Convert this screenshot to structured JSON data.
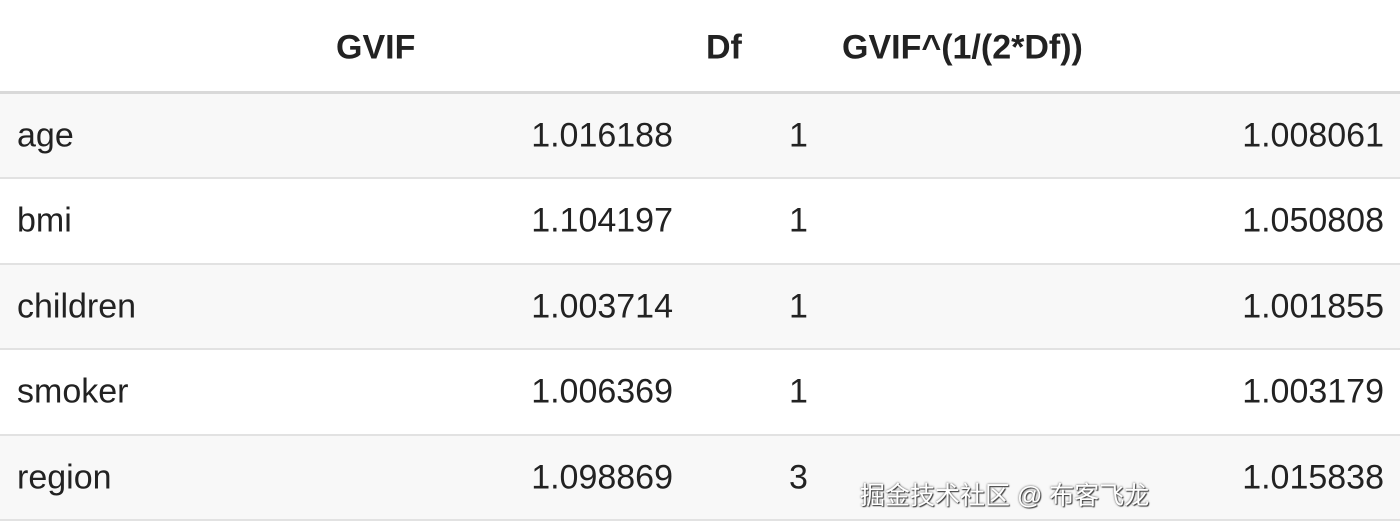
{
  "table": {
    "headers": [
      "",
      "GVIF",
      "Df",
      "GVIF^(1/(2*Df))"
    ],
    "rows": [
      {
        "name": "age",
        "gvif": "1.016188",
        "df": "1",
        "adj": "1.008061"
      },
      {
        "name": "bmi",
        "gvif": "1.104197",
        "df": "1",
        "adj": "1.050808"
      },
      {
        "name": "children",
        "gvif": "1.003714",
        "df": "1",
        "adj": "1.001855"
      },
      {
        "name": "smoker",
        "gvif": "1.006369",
        "df": "1",
        "adj": "1.003179"
      },
      {
        "name": "region",
        "gvif": "1.098869",
        "df": "3",
        "adj": "1.015838"
      }
    ]
  },
  "watermark": "掘金技术社区 @ 布客飞龙"
}
